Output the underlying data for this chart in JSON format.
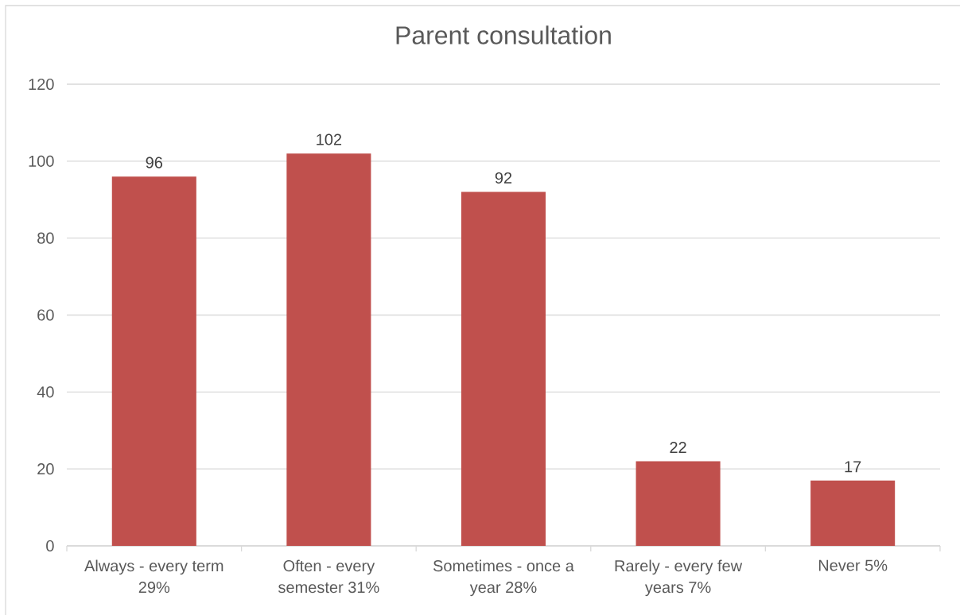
{
  "chart_data": {
    "type": "bar",
    "title": "Parent consultation",
    "categories": [
      "Always - every term 29%",
      "Often - every semester 31%",
      "Sometimes - once a year 28%",
      "Rarely - every few years 7%",
      "Never 5%"
    ],
    "values": [
      96,
      102,
      92,
      22,
      17
    ],
    "color": "#c0504d",
    "ylim": [
      0,
      120
    ],
    "yticks": [
      0,
      20,
      40,
      60,
      80,
      100,
      120
    ],
    "grid": "y",
    "data_labels": true
  }
}
